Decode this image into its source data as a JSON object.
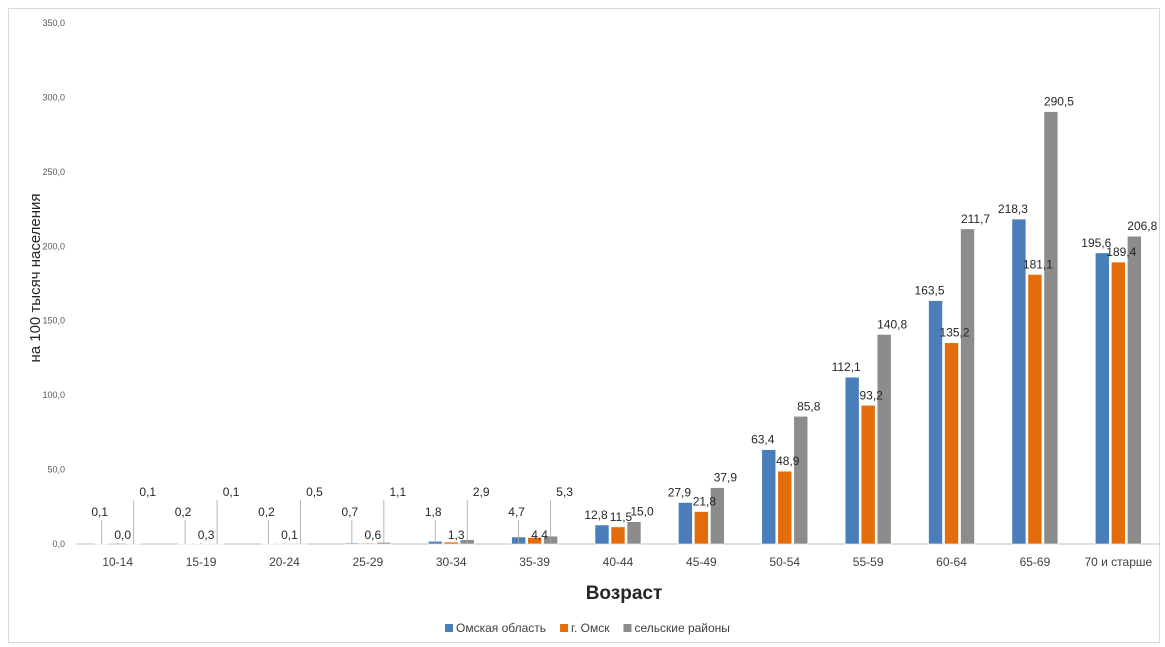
{
  "chart_data": {
    "type": "bar",
    "title": "",
    "xlabel": "Возраст",
    "ylabel": "на 100 тысяч населения",
    "ylim": [
      0,
      350
    ],
    "yticks": [
      "0,0",
      "50,0",
      "100,0",
      "150,0",
      "200,0",
      "250,0",
      "300,0",
      "350,0"
    ],
    "categories": [
      "10-14",
      "15-19",
      "20-24",
      "25-29",
      "30-34",
      "35-39",
      "40-44",
      "45-49",
      "50-54",
      "55-59",
      "60-64",
      "65-69",
      "70 и старше"
    ],
    "series": [
      {
        "name": "Омская область",
        "color": "#4a7ebb",
        "values": [
          0.1,
          0.2,
          0.2,
          0.7,
          1.8,
          4.7,
          12.8,
          27.9,
          63.4,
          112.1,
          163.5,
          218.3,
          195.6
        ],
        "labels": [
          "0,1",
          "0,2",
          "0,2",
          "0,7",
          "1,8",
          "4,7",
          "12,8",
          "27,9",
          "63,4",
          "112,1",
          "163,5",
          "218,3",
          "195,6"
        ]
      },
      {
        "name": "г. Омск",
        "color": "#e46c0a",
        "values": [
          0.0,
          0.3,
          0.1,
          0.6,
          1.3,
          4.4,
          11.5,
          21.8,
          48.9,
          93.2,
          135.2,
          181.1,
          189.4
        ],
        "labels": [
          "0,0",
          "0,3",
          "0,1",
          "0,6",
          "1,3",
          "4,4",
          "11,5",
          "21,8",
          "48,9",
          "93,2",
          "135,2",
          "181,1",
          "189,4"
        ]
      },
      {
        "name": "сельские районы",
        "color": "#8c8c8c",
        "values": [
          0.1,
          0.1,
          0.5,
          1.1,
          2.9,
          5.3,
          15.0,
          37.9,
          85.8,
          140.8,
          211.7,
          290.5,
          206.8
        ],
        "labels": [
          "0,1",
          "0,1",
          "0,5",
          "1,1",
          "2,9",
          "5,3",
          "15,0",
          "37,9",
          "85,8",
          "140,8",
          "211,7",
          "290,5",
          "206,8"
        ]
      }
    ],
    "grid": false,
    "legend": "bottom"
  }
}
